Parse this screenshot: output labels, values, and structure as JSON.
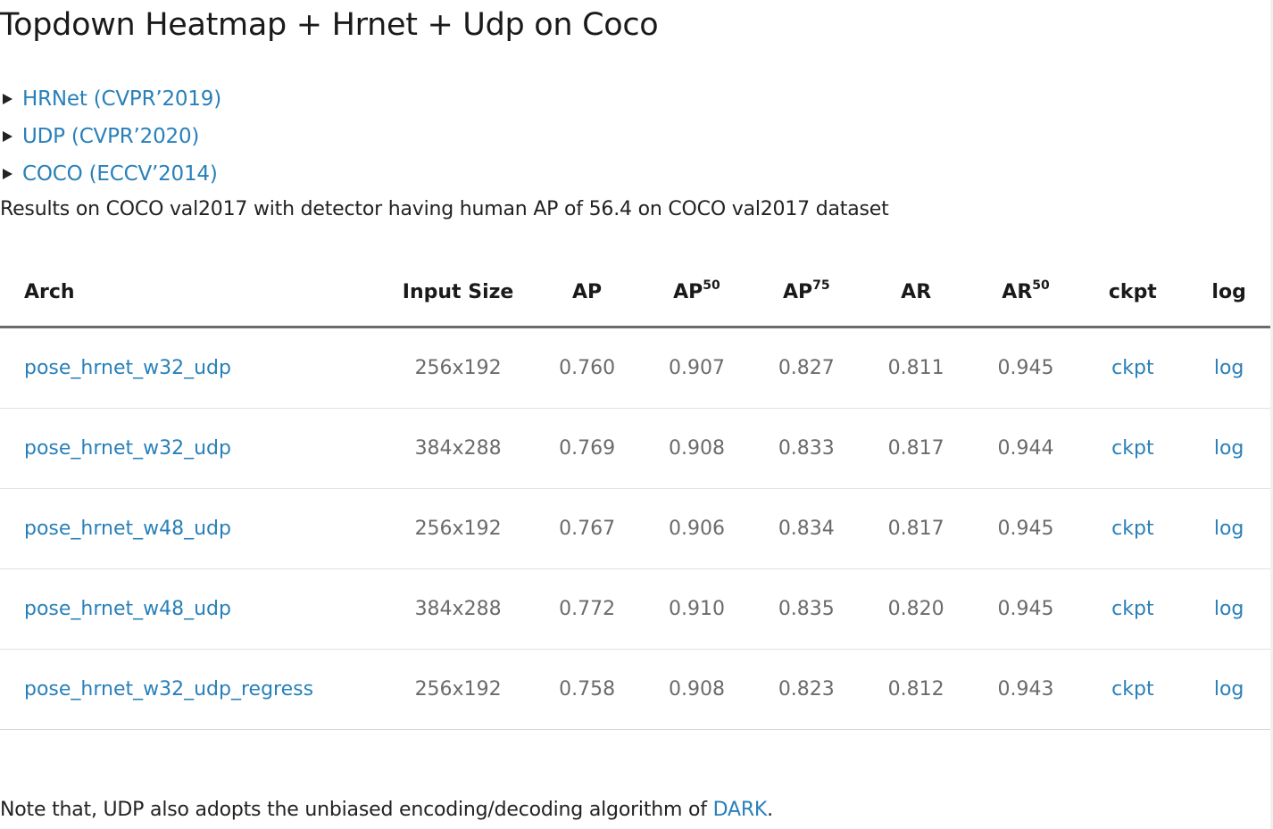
{
  "title": "Topdown Heatmap + Hrnet + Udp on Coco",
  "details": [
    {
      "label": "HRNet (CVPR’2019)"
    },
    {
      "label": "UDP (CVPR’2020)"
    },
    {
      "label": "COCO (ECCV’2014)"
    }
  ],
  "results_text": "Results on COCO val2017 with detector having human AP of 56.4 on COCO val2017 dataset",
  "table": {
    "headers": {
      "arch": "Arch",
      "input_size": "Input Size",
      "ap": "AP",
      "ap50_base": "AP",
      "ap50_sup": "50",
      "ap75_base": "AP",
      "ap75_sup": "75",
      "ar": "AR",
      "ar50_base": "AR",
      "ar50_sup": "50",
      "ckpt": "ckpt",
      "log": "log"
    },
    "rows": [
      {
        "arch": "pose_hrnet_w32_udp",
        "input_size": "256x192",
        "ap": "0.760",
        "ap50": "0.907",
        "ap75": "0.827",
        "ar": "0.811",
        "ar50": "0.945",
        "ckpt": "ckpt",
        "log": "log"
      },
      {
        "arch": "pose_hrnet_w32_udp",
        "input_size": "384x288",
        "ap": "0.769",
        "ap50": "0.908",
        "ap75": "0.833",
        "ar": "0.817",
        "ar50": "0.944",
        "ckpt": "ckpt",
        "log": "log"
      },
      {
        "arch": "pose_hrnet_w48_udp",
        "input_size": "256x192",
        "ap": "0.767",
        "ap50": "0.906",
        "ap75": "0.834",
        "ar": "0.817",
        "ar50": "0.945",
        "ckpt": "ckpt",
        "log": "log"
      },
      {
        "arch": "pose_hrnet_w48_udp",
        "input_size": "384x288",
        "ap": "0.772",
        "ap50": "0.910",
        "ap75": "0.835",
        "ar": "0.820",
        "ar50": "0.945",
        "ckpt": "ckpt",
        "log": "log"
      },
      {
        "arch": "pose_hrnet_w32_udp_regress",
        "input_size": "256x192",
        "ap": "0.758",
        "ap50": "0.908",
        "ap75": "0.823",
        "ar": "0.812",
        "ar50": "0.943",
        "ckpt": "ckpt",
        "log": "log"
      }
    ]
  },
  "note": {
    "prefix": "Note that, UDP also adopts the unbiased encoding/decoding algorithm of ",
    "link": "DARK",
    "suffix": "."
  },
  "colors": {
    "link": "#2980b9",
    "text": "#222222",
    "muted": "#6b6b6b"
  }
}
